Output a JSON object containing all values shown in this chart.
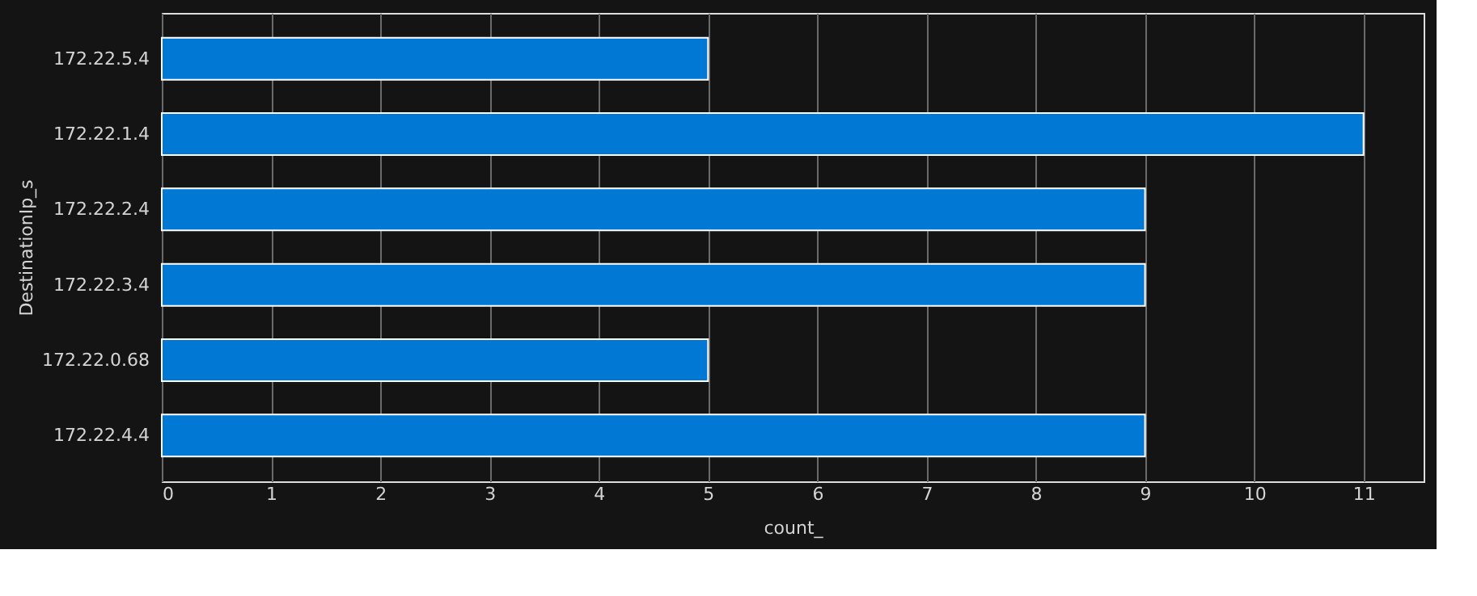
{
  "chart_data": {
    "type": "bar",
    "orientation": "horizontal",
    "xlabel": "count_",
    "ylabel": "DestinationIp_s",
    "categories": [
      "172.22.5.4",
      "172.22.1.4",
      "172.22.2.4",
      "172.22.3.4",
      "172.22.0.68",
      "172.22.4.4"
    ],
    "series": [
      {
        "color": "#0078d4",
        "values": [
          5,
          11,
          9,
          9,
          5,
          9
        ]
      }
    ],
    "xlim": [
      0,
      11.55
    ],
    "xticks": [
      0,
      1,
      2,
      3,
      4,
      5,
      6,
      7,
      8,
      9,
      10,
      11
    ],
    "grid": "x",
    "legend": false
  }
}
